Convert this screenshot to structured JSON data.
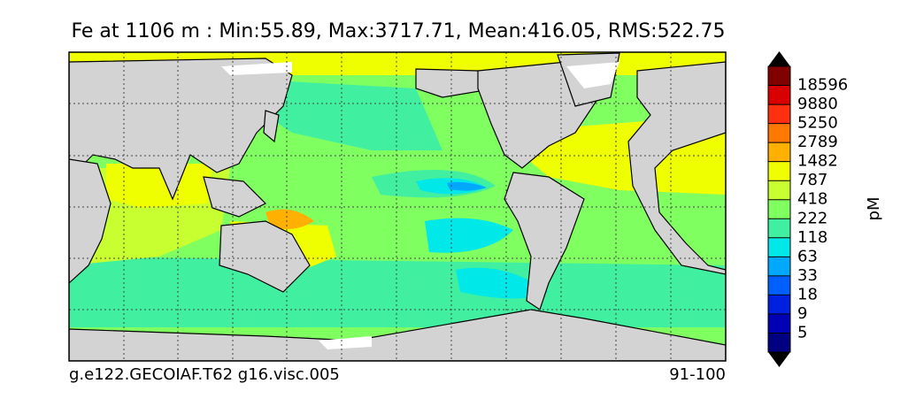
{
  "title": "Fe at 1106 m : Min:55.89, Max:3717.71, Mean:416.05, RMS:522.75",
  "colorbar": {
    "label": "pM",
    "ticks": [
      5,
      9,
      18,
      33,
      63,
      118,
      222,
      418,
      787,
      1482,
      2789,
      5250,
      9880,
      18596
    ],
    "colors": [
      "#000080",
      "#0000b4",
      "#0020e0",
      "#0060ff",
      "#00a8ff",
      "#00e8e8",
      "#40f0a0",
      "#80ff60",
      "#c8ff30",
      "#f0ff00",
      "#ffb000",
      "#ff7800",
      "#ff3010",
      "#d80000",
      "#800000"
    ]
  },
  "footer": {
    "left": "g.e122.GECOIAF.T62 g16.visc.005",
    "right": "91-100"
  }
}
